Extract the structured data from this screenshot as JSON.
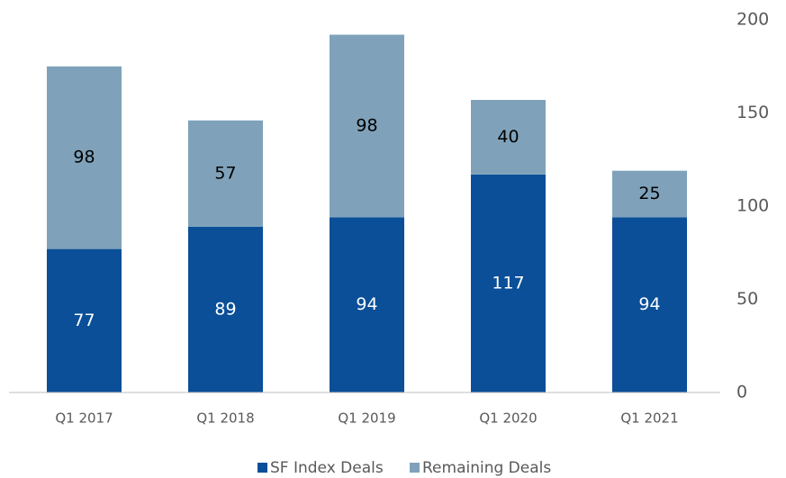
{
  "chart_data": {
    "type": "stacked_bar",
    "categories": [
      "Q1 2017",
      "Q1 2018",
      "Q1 2019",
      "Q1 2020",
      "Q1 2021"
    ],
    "series": [
      {
        "name": "SF Index Deals",
        "color": "#0a4f98",
        "values": [
          77,
          89,
          94,
          117,
          94
        ]
      },
      {
        "name": "Remaining Deals",
        "color": "#7fa2ba",
        "values": [
          98,
          57,
          98,
          40,
          25
        ]
      }
    ],
    "ylim": [
      0,
      200
    ],
    "yticks": [
      0,
      50,
      100,
      150,
      200
    ],
    "y_axis_side": "right",
    "grid": false,
    "legend": "bottom"
  }
}
